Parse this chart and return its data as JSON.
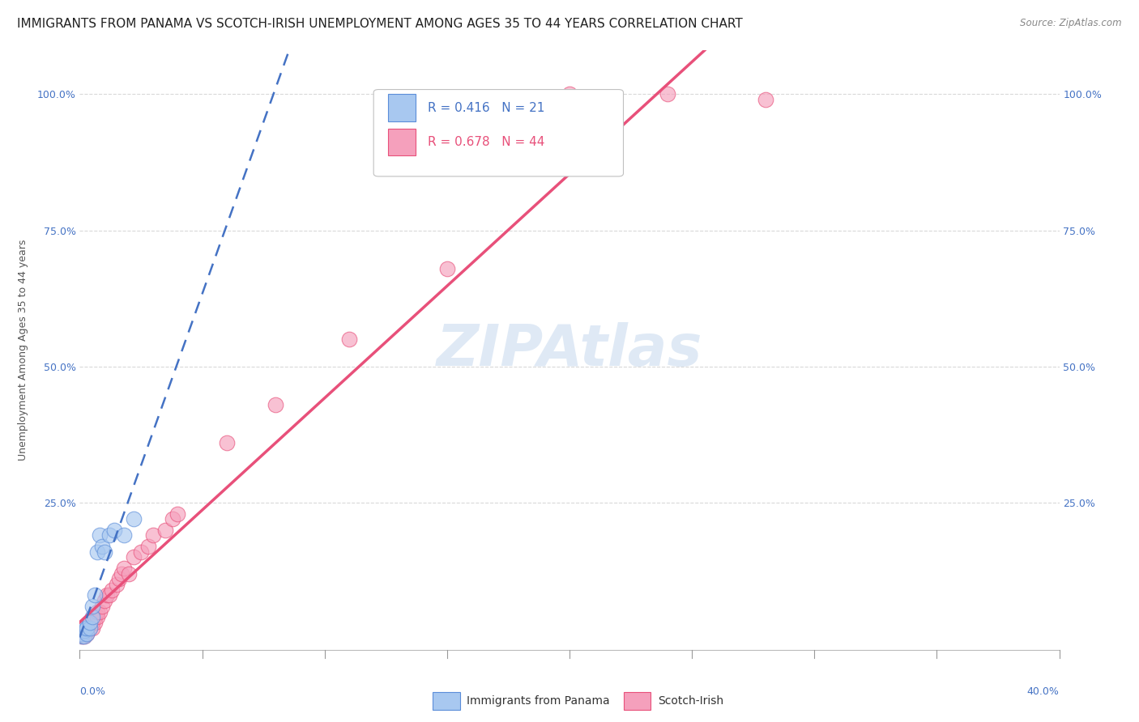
{
  "title": "IMMIGRANTS FROM PANAMA VS SCOTCH-IRISH UNEMPLOYMENT AMONG AGES 35 TO 44 YEARS CORRELATION CHART",
  "source": "Source: ZipAtlas.com",
  "ylabel": "Unemployment Among Ages 35 to 44 years",
  "R1": "0.416",
  "N1": "21",
  "R2": "0.678",
  "N2": "44",
  "panama_color": "#a8c8f0",
  "scotch_color": "#f5a0bc",
  "panama_edge_color": "#5b8dd9",
  "scotch_edge_color": "#e8507a",
  "panama_line_color": "#4472c4",
  "scotch_line_color": "#e8507a",
  "legend_label1": "Immigrants from Panama",
  "legend_label2": "Scotch-Irish",
  "xlim": [
    0.0,
    0.4
  ],
  "ylim": [
    -0.02,
    1.08
  ],
  "ytick_values": [
    0.25,
    0.5,
    0.75,
    1.0
  ],
  "ytick_labels": [
    "25.0%",
    "50.0%",
    "75.0%",
    "100.0%"
  ],
  "background_color": "#ffffff",
  "grid_color": "#d0d0d0",
  "watermark": "ZIPAtlas",
  "panama_x": [
    0.001,
    0.001,
    0.001,
    0.002,
    0.002,
    0.002,
    0.003,
    0.003,
    0.004,
    0.004,
    0.005,
    0.005,
    0.006,
    0.007,
    0.008,
    0.009,
    0.01,
    0.012,
    0.014,
    0.018,
    0.022
  ],
  "panama_y": [
    0.005,
    0.01,
    0.02,
    0.005,
    0.015,
    0.02,
    0.01,
    0.02,
    0.02,
    0.03,
    0.04,
    0.06,
    0.08,
    0.16,
    0.19,
    0.17,
    0.16,
    0.19,
    0.2,
    0.19,
    0.22
  ],
  "scotch_x": [
    0.001,
    0.001,
    0.001,
    0.001,
    0.002,
    0.002,
    0.002,
    0.002,
    0.003,
    0.003,
    0.003,
    0.004,
    0.004,
    0.005,
    0.005,
    0.006,
    0.006,
    0.007,
    0.007,
    0.008,
    0.009,
    0.01,
    0.011,
    0.012,
    0.013,
    0.015,
    0.016,
    0.017,
    0.018,
    0.02,
    0.022,
    0.025,
    0.028,
    0.03,
    0.035,
    0.038,
    0.04,
    0.06,
    0.08,
    0.11,
    0.15,
    0.2,
    0.24,
    0.28
  ],
  "scotch_y": [
    0.005,
    0.01,
    0.01,
    0.02,
    0.005,
    0.01,
    0.015,
    0.02,
    0.01,
    0.015,
    0.02,
    0.02,
    0.03,
    0.02,
    0.03,
    0.03,
    0.04,
    0.04,
    0.05,
    0.05,
    0.06,
    0.07,
    0.08,
    0.08,
    0.09,
    0.1,
    0.11,
    0.12,
    0.13,
    0.12,
    0.15,
    0.16,
    0.17,
    0.19,
    0.2,
    0.22,
    0.23,
    0.36,
    0.43,
    0.55,
    0.68,
    1.0,
    1.0,
    0.99
  ],
  "panama_line_x": [
    0.0,
    0.4
  ],
  "panama_line_y": [
    0.02,
    0.62
  ],
  "scotch_line_x": [
    0.0,
    0.4
  ],
  "scotch_line_y": [
    -0.02,
    0.84
  ],
  "title_fontsize": 11,
  "axis_label_fontsize": 9,
  "tick_fontsize": 9
}
